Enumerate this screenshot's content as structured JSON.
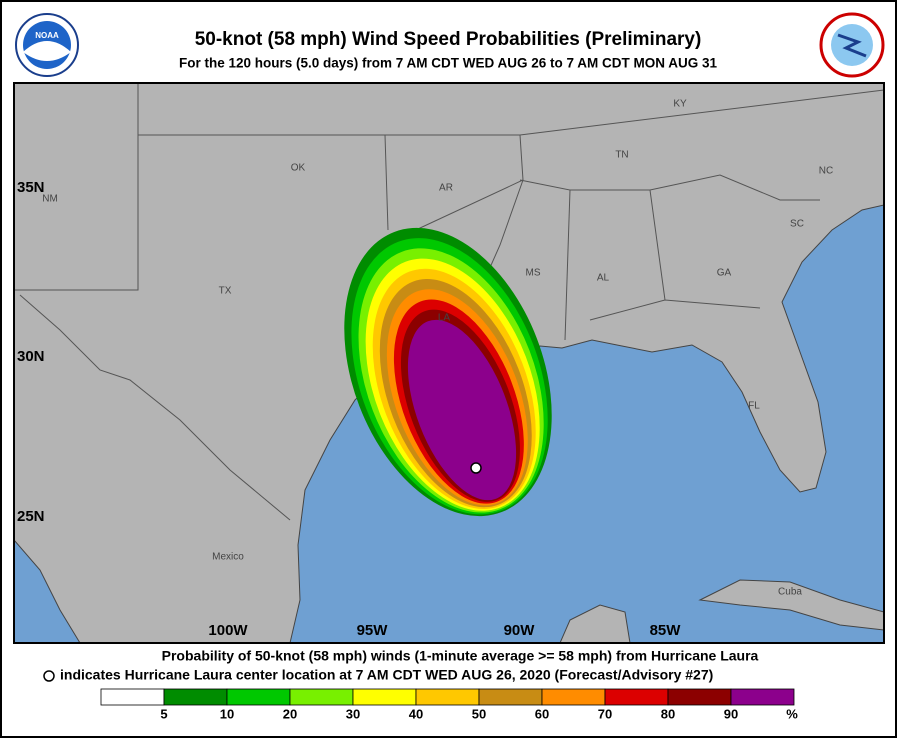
{
  "header": {
    "title": "50-knot (58 mph) Wind Speed Probabilities (Preliminary)",
    "subtitle": "For the 120 hours (5.0 days) from 7 AM CDT WED AUG 26 to 7 AM CDT MON AUG 31",
    "logo_left": "NOAA"
  },
  "map": {
    "labels": [
      "KY",
      "TN",
      "NC",
      "OK",
      "AR",
      "SC",
      "NM",
      "MS",
      "AL",
      "GA",
      "TX",
      "LA",
      "FL",
      "Mexico",
      "Cuba"
    ],
    "lat_labels": [
      "35N",
      "30N",
      "25N"
    ],
    "lon_labels": [
      "100W",
      "95W",
      "90W",
      "85W"
    ]
  },
  "footer": {
    "line1": "Probability of 50-knot (58 mph) winds (1-minute average >= 58 mph) from Hurricane Laura",
    "line2": "indicates Hurricane Laura center location at 7 AM CDT WED AUG 26, 2020 (Forecast/Advisory #27)"
  },
  "legend": {
    "colors": [
      "#ffffff",
      "#008c00",
      "#00c800",
      "#78f000",
      "#ffff00",
      "#ffc800",
      "#c88c14",
      "#ff8c00",
      "#dc0000",
      "#8c0000",
      "#8c008c"
    ],
    "ticks": [
      5,
      10,
      20,
      30,
      40,
      50,
      60,
      70,
      80,
      90
    ],
    "unit": "%"
  }
}
